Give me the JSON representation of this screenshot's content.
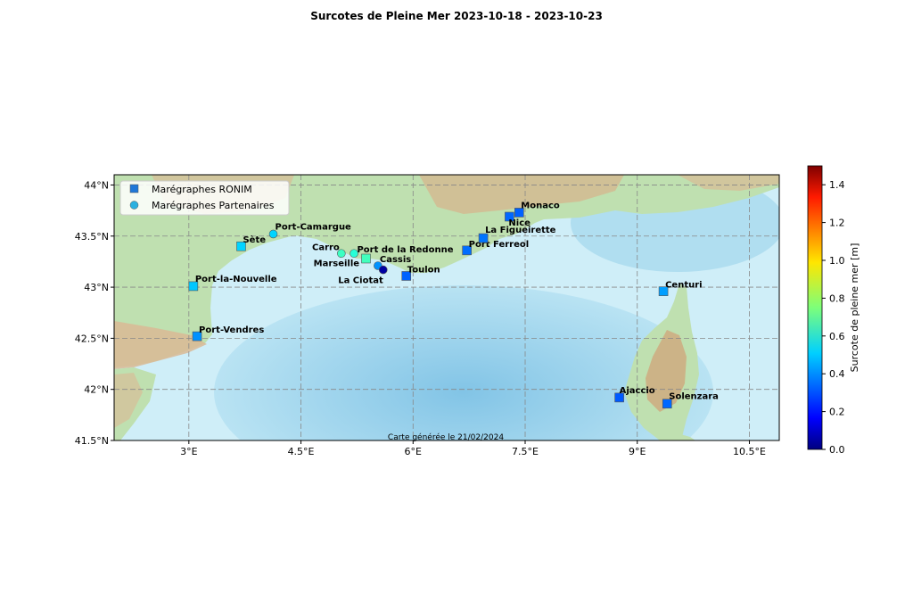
{
  "title": "Surcotes de Pleine Mer 2023-10-18 - 2023-10-23",
  "footer": "Carte générée le 21/02/2024",
  "map": {
    "lon_range": [
      2.0,
      10.9
    ],
    "lat_range": [
      41.5,
      44.1
    ],
    "lon_ticks": [
      {
        "v": 3.0,
        "label": "3°E"
      },
      {
        "v": 4.5,
        "label": "4.5°E"
      },
      {
        "v": 6.0,
        "label": "6°E"
      },
      {
        "v": 7.5,
        "label": "7.5°E"
      },
      {
        "v": 9.0,
        "label": "9°E"
      },
      {
        "v": 10.5,
        "label": "10.5°E"
      }
    ],
    "lat_ticks": [
      {
        "v": 44.0,
        "label": "44°N"
      },
      {
        "v": 43.5,
        "label": "43.5°N"
      },
      {
        "v": 43.0,
        "label": "43°N"
      },
      {
        "v": 42.5,
        "label": "42.5°N"
      },
      {
        "v": 42.0,
        "label": "42°N"
      },
      {
        "v": 41.5,
        "label": "41.5°N"
      }
    ],
    "colors": {
      "sea": "#cfeef8",
      "deep_sea": "#7cc3e6",
      "land": "#bfe0b0",
      "mountain": "#d9b995"
    }
  },
  "legend": {
    "ronim": "Marégraphes RONIM",
    "partenaires": "Marégraphes Partenaires",
    "ronim_color": "#1f77d8",
    "partenaires_color": "#2ab0e0"
  },
  "colorbar": {
    "label": "Surcote de pleine mer [m]",
    "min": 0.0,
    "max": 1.5,
    "ticks": [
      "0.0",
      "0.2",
      "0.4",
      "0.6",
      "0.8",
      "1.0",
      "1.2",
      "1.4"
    ]
  },
  "stations": [
    {
      "name": "Port-Vendres",
      "lon": 3.11,
      "lat": 42.52,
      "type": "ronim",
      "value": 0.4
    },
    {
      "name": "Port-la-Nouvelle",
      "lon": 3.06,
      "lat": 43.01,
      "type": "ronim",
      "value": 0.48
    },
    {
      "name": "Sète",
      "lon": 3.7,
      "lat": 43.4,
      "type": "ronim",
      "value": 0.5
    },
    {
      "name": "Port-Camargue",
      "lon": 4.13,
      "lat": 43.52,
      "type": "partenaires",
      "value": 0.5
    },
    {
      "name": "Carro",
      "lon": 5.04,
      "lat": 43.33,
      "type": "partenaires",
      "value": 0.65
    },
    {
      "name": "Marseille",
      "lon": 5.21,
      "lat": 43.33,
      "type": "partenaires",
      "value": 0.62
    },
    {
      "name": "Port de la Redonne",
      "lon": 5.37,
      "lat": 43.28,
      "type": "ronim",
      "value": 0.66
    },
    {
      "name": "Cassis",
      "lon": 5.53,
      "lat": 43.21,
      "type": "partenaires",
      "value": 0.4
    },
    {
      "name": "La Ciotat",
      "lon": 5.6,
      "lat": 43.17,
      "type": "partenaires",
      "value": 0.05
    },
    {
      "name": "Toulon",
      "lon": 5.91,
      "lat": 43.11,
      "type": "ronim",
      "value": 0.33
    },
    {
      "name": "Port Ferreol",
      "lon": 6.72,
      "lat": 43.36,
      "type": "ronim",
      "value": 0.35
    },
    {
      "name": "La Figueirette",
      "lon": 6.94,
      "lat": 43.48,
      "type": "ronim",
      "value": 0.36
    },
    {
      "name": "Nice",
      "lon": 7.29,
      "lat": 43.69,
      "type": "ronim",
      "value": 0.34
    },
    {
      "name": "Monaco",
      "lon": 7.42,
      "lat": 43.73,
      "type": "ronim",
      "value": 0.33
    },
    {
      "name": "Centuri",
      "lon": 9.35,
      "lat": 42.96,
      "type": "ronim",
      "value": 0.42
    },
    {
      "name": "Ajaccio",
      "lon": 8.76,
      "lat": 41.92,
      "type": "ronim",
      "value": 0.32
    },
    {
      "name": "Solenzara",
      "lon": 9.4,
      "lat": 41.86,
      "type": "ronim",
      "value": 0.34
    }
  ]
}
